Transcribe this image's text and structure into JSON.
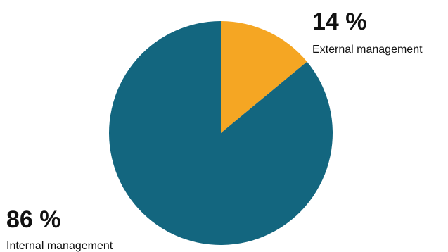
{
  "chart_data": {
    "type": "pie",
    "slices": [
      {
        "label": "External management",
        "value": 14,
        "value_label": "14 %",
        "color": "#f5a623"
      },
      {
        "label": "Internal management",
        "value": 86,
        "value_label": "86 %",
        "color": "#13667f"
      }
    ],
    "start": "12 o'clock",
    "direction": "clockwise",
    "legend": "none"
  }
}
